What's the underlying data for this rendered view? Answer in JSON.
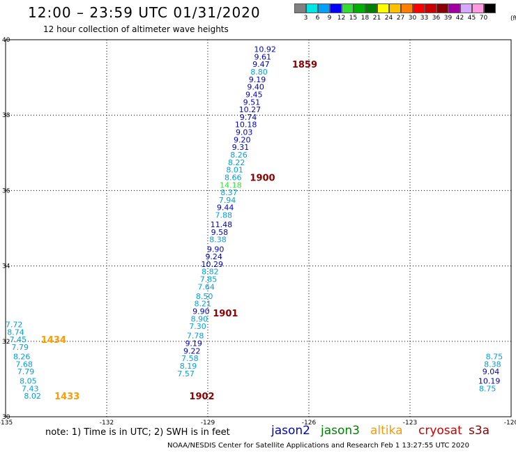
{
  "title": "12:00 – 23:59 UTC 01/31/2020",
  "subtitle": "12 hour collection of altimeter wave heights",
  "legend": {
    "labels": [
      "3",
      "6",
      "9",
      "12",
      "15",
      "18",
      "21",
      "24",
      "27",
      "30",
      "33",
      "36",
      "39",
      "42",
      "45",
      "70"
    ],
    "colors": [
      "#808080",
      "#00e5e5",
      "#00a0ff",
      "#0000ff",
      "#33dd33",
      "#00b000",
      "#008000",
      "#ffff00",
      "#ffc000",
      "#ff8000",
      "#ff0000",
      "#c80000",
      "#8b0000",
      "#a000a0",
      "#d8a8ff",
      "#ff9ae0",
      "#000000"
    ],
    "unit": "(ft)"
  },
  "axes": {
    "x_ticks": [
      "-135",
      "-132",
      "-129",
      "-126",
      "-123",
      "-120"
    ],
    "y_ticks": [
      "40",
      "38",
      "36",
      "34",
      "32",
      "30"
    ],
    "x_range": [
      -135,
      -120
    ],
    "y_range": [
      30,
      40
    ]
  },
  "tracks": [
    {
      "id": "pass-1859",
      "pass_label": "1859",
      "pass_color": "#8b0000",
      "points": [
        {
          "lon": -127.3,
          "lat": 39.75,
          "value": "10.92",
          "color": "#0000cc"
        },
        {
          "lon": -127.37,
          "lat": 39.55,
          "value": "9.61",
          "color": "#0000cc"
        },
        {
          "lon": -127.42,
          "lat": 39.35,
          "value": "9.47",
          "color": "#0000cc"
        },
        {
          "lon": -127.48,
          "lat": 39.15,
          "value": "8.80",
          "color": "#00a0e0"
        },
        {
          "lon": -127.53,
          "lat": 38.95,
          "value": "9.19",
          "color": "#0000cc"
        },
        {
          "lon": -127.58,
          "lat": 38.75,
          "value": "9.40",
          "color": "#0000cc"
        },
        {
          "lon": -127.63,
          "lat": 38.55,
          "value": "9.45",
          "color": "#0000cc"
        },
        {
          "lon": -127.7,
          "lat": 38.35,
          "value": "9.51",
          "color": "#0000cc"
        },
        {
          "lon": -127.75,
          "lat": 38.15,
          "value": "10.27",
          "color": "#0000cc"
        },
        {
          "lon": -127.8,
          "lat": 37.95,
          "value": "9.74",
          "color": "#0000cc"
        },
        {
          "lon": -127.87,
          "lat": 37.75,
          "value": "10.18",
          "color": "#0000cc"
        },
        {
          "lon": -127.92,
          "lat": 37.55,
          "value": "9.03",
          "color": "#0000cc"
        },
        {
          "lon": -127.98,
          "lat": 37.35,
          "value": "9.20",
          "color": "#0000cc"
        },
        {
          "lon": -128.03,
          "lat": 37.15,
          "value": "9.31",
          "color": "#0000cc"
        },
        {
          "lon": -128.08,
          "lat": 36.95,
          "value": "8.26",
          "color": "#00a0e0"
        },
        {
          "lon": -128.15,
          "lat": 36.75,
          "value": "8.22",
          "color": "#00a0e0"
        },
        {
          "lon": -128.2,
          "lat": 36.55,
          "value": "8.01",
          "color": "#00a0e0"
        }
      ]
    },
    {
      "id": "pass-1900",
      "pass_label": "1900",
      "pass_color": "#8b0000",
      "points": [
        {
          "lon": -128.25,
          "lat": 36.35,
          "value": "8.66",
          "color": "#00a0e0"
        },
        {
          "lon": -128.32,
          "lat": 36.15,
          "value": "14.18",
          "color": "#33dd33"
        },
        {
          "lon": -128.37,
          "lat": 35.95,
          "value": "8.37",
          "color": "#00a0e0"
        },
        {
          "lon": -128.42,
          "lat": 35.75,
          "value": "7.94",
          "color": "#00a0e0"
        },
        {
          "lon": -128.48,
          "lat": 35.55,
          "value": "9.44",
          "color": "#0000cc"
        },
        {
          "lon": -128.53,
          "lat": 35.35,
          "value": "7.88",
          "color": "#00a0e0"
        },
        {
          "lon": -128.6,
          "lat": 35.1,
          "value": "11.48",
          "color": "#0000cc"
        },
        {
          "lon": -128.65,
          "lat": 34.9,
          "value": "9.58",
          "color": "#0000cc"
        },
        {
          "lon": -128.7,
          "lat": 34.7,
          "value": "8.38",
          "color": "#00a0e0"
        },
        {
          "lon": -128.77,
          "lat": 34.45,
          "value": "9.90",
          "color": "#0000cc"
        },
        {
          "lon": -128.82,
          "lat": 34.25,
          "value": "9.24",
          "color": "#0000cc"
        },
        {
          "lon": -128.87,
          "lat": 34.05,
          "value": "10.29",
          "color": "#0000cc"
        },
        {
          "lon": -128.93,
          "lat": 33.85,
          "value": "8.82",
          "color": "#00a0e0"
        },
        {
          "lon": -128.98,
          "lat": 33.65,
          "value": "7.85",
          "color": "#00a0e0"
        },
        {
          "lon": -129.05,
          "lat": 33.45,
          "value": "7.64",
          "color": "#00a0e0"
        },
        {
          "lon": -129.1,
          "lat": 33.2,
          "value": "8.50",
          "color": "#00a0e0"
        },
        {
          "lon": -129.15,
          "lat": 33.0,
          "value": "8.21",
          "color": "#00a0e0"
        }
      ]
    },
    {
      "id": "pass-1901",
      "pass_label": "1901",
      "pass_color": "#8b0000",
      "points": [
        {
          "lon": -129.2,
          "lat": 32.8,
          "value": "9.90",
          "color": "#0000cc"
        },
        {
          "lon": -129.25,
          "lat": 32.6,
          "value": "8.90",
          "color": "#00a0e0"
        },
        {
          "lon": -129.3,
          "lat": 32.4,
          "value": "7.30",
          "color": "#00a0e0"
        },
        {
          "lon": -129.37,
          "lat": 32.15,
          "value": "7.78",
          "color": "#00a0e0"
        },
        {
          "lon": -129.42,
          "lat": 31.95,
          "value": "9.19",
          "color": "#0000cc"
        },
        {
          "lon": -129.47,
          "lat": 31.75,
          "value": "9.22",
          "color": "#0000cc"
        },
        {
          "lon": -129.53,
          "lat": 31.55,
          "value": "7.58",
          "color": "#00a0e0"
        },
        {
          "lon": -129.58,
          "lat": 31.35,
          "value": "8.19",
          "color": "#00a0e0"
        },
        {
          "lon": -129.65,
          "lat": 31.15,
          "value": "7.57",
          "color": "#00a0e0"
        }
      ]
    },
    {
      "id": "pass-1434",
      "pass_label": "1434",
      "pass_color": "#ff9900",
      "points": [
        {
          "lon": -134.75,
          "lat": 32.45,
          "value": "7.72",
          "color": "#00a0e0"
        },
        {
          "lon": -134.7,
          "lat": 32.25,
          "value": "8.74",
          "color": "#00a0e0"
        },
        {
          "lon": -134.63,
          "lat": 32.05,
          "value": "7.45",
          "color": "#00a0e0"
        },
        {
          "lon": -134.57,
          "lat": 31.85,
          "value": "7.79",
          "color": "#00a0e0"
        },
        {
          "lon": -134.52,
          "lat": 31.6,
          "value": "8.26",
          "color": "#00a0e0"
        },
        {
          "lon": -134.45,
          "lat": 31.4,
          "value": "7.68",
          "color": "#00a0e0"
        },
        {
          "lon": -134.4,
          "lat": 31.2,
          "value": "7.79",
          "color": "#00a0e0"
        },
        {
          "lon": -134.33,
          "lat": 30.95,
          "value": "8.05",
          "color": "#00a0e0"
        }
      ]
    },
    {
      "id": "pass-1433",
      "pass_label": "1433",
      "pass_color": "#ff9900",
      "points": [
        {
          "lon": -134.27,
          "lat": 30.75,
          "value": "7.43",
          "color": "#00a0e0"
        },
        {
          "lon": -134.2,
          "lat": 30.55,
          "value": "8.02",
          "color": "#00a0e0"
        }
      ]
    },
    {
      "id": "pass-1902",
      "pass_label": "1902",
      "pass_color": "#8b0000",
      "points": []
    },
    {
      "id": "east-track",
      "pass_label": "",
      "pass_color": "#8b0000",
      "points": [
        {
          "lon": -120.5,
          "lat": 31.6,
          "value": "8.75",
          "color": "#00a0e0"
        },
        {
          "lon": -120.55,
          "lat": 31.4,
          "value": "8.38",
          "color": "#00a0e0"
        },
        {
          "lon": -120.6,
          "lat": 31.2,
          "value": "9.04",
          "color": "#0000cc"
        },
        {
          "lon": -120.65,
          "lat": 30.95,
          "value": "10.19",
          "color": "#0000cc"
        },
        {
          "lon": -120.7,
          "lat": 30.75,
          "value": "8.75",
          "color": "#00a0e0"
        }
      ]
    }
  ],
  "pass_labels": [
    {
      "text": "1859",
      "lon": -126.5,
      "lat": 39.35,
      "color": "#8b0000"
    },
    {
      "text": "1900",
      "lon": -127.75,
      "lat": 36.35,
      "color": "#8b0000"
    },
    {
      "text": "1901",
      "lon": -128.85,
      "lat": 32.75,
      "color": "#8b0000"
    },
    {
      "text": "1434",
      "lon": -133.95,
      "lat": 32.05,
      "color": "#ff9900"
    },
    {
      "text": "1433",
      "lon": -133.55,
      "lat": 30.55,
      "color": "#ff9900"
    },
    {
      "text": "1902",
      "lon": -129.55,
      "lat": 30.55,
      "color": "#8b0000"
    }
  ],
  "note": "note:  1) Time is in UTC;  2) SWH is in feet",
  "satellites": [
    {
      "name": "jason2",
      "color": "#0000cc"
    },
    {
      "name": "jason3",
      "color": "#008000"
    },
    {
      "name": "altika",
      "color": "#ff9900"
    },
    {
      "name": "cryosat",
      "color": "#cc0000"
    },
    {
      "name": "s3a",
      "color": "#8b0000"
    }
  ],
  "footer": "NOAA/NESDIS Center for Satellite Applications and Research    Feb  1 13:27:55 UTC 2020"
}
